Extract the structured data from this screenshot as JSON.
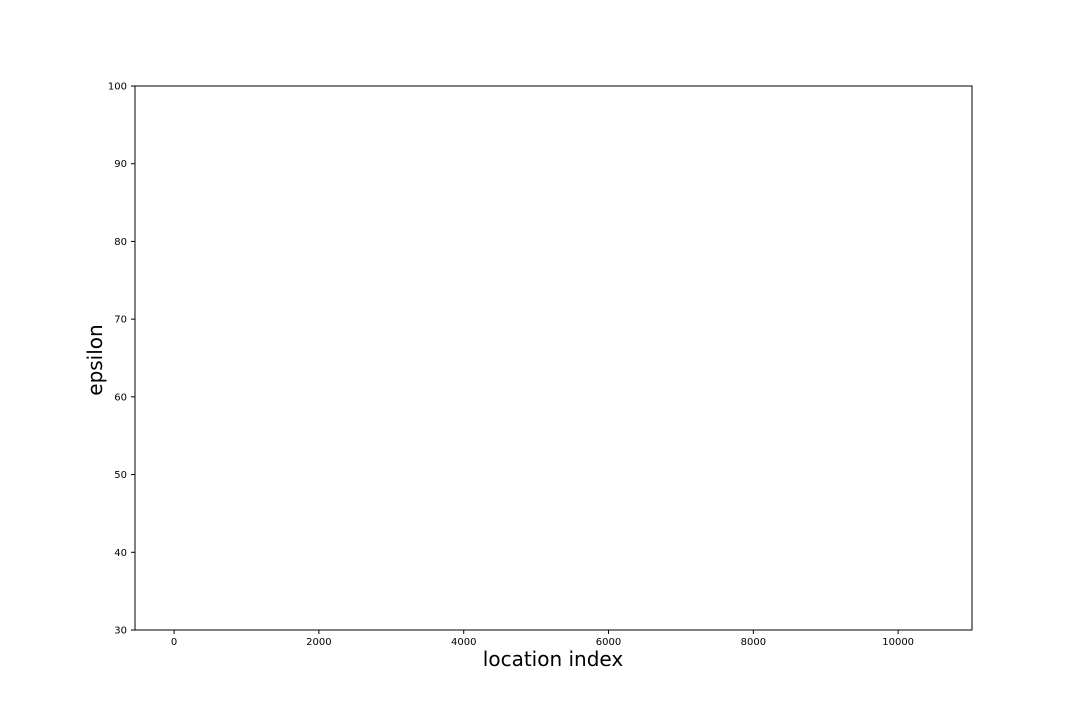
{
  "chart_data": {
    "type": "line",
    "title": "",
    "xlabel": "location index",
    "ylabel": "epsilon",
    "xlim": [
      -540,
      11020
    ],
    "ylim": [
      30,
      100
    ],
    "xticks": [
      0,
      2000,
      4000,
      6000,
      8000,
      10000
    ],
    "xtick_labels": [
      "0",
      "2000",
      "4000",
      "6000",
      "8000",
      "10000"
    ],
    "yticks": [
      30,
      40,
      50,
      60,
      70,
      80,
      90,
      100
    ],
    "ytick_labels": [
      "30",
      "40",
      "50",
      "60",
      "70",
      "80",
      "90",
      "100"
    ],
    "grid": false,
    "series": []
  }
}
